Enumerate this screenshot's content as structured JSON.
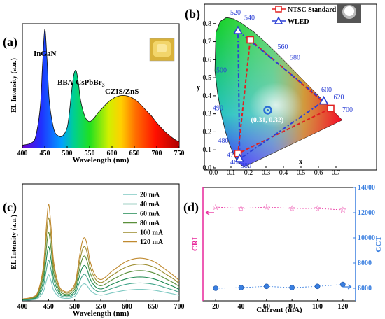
{
  "colors": {
    "nc_red": "#e02020",
    "nc_blue": "#2b3fd6",
    "cri_pink": "#e8279b",
    "cct_blue": "#3a7fe0"
  },
  "panel_labels": {
    "a": "(a)",
    "b": "(b)",
    "c": "(c)",
    "d": "(d)"
  },
  "chart_data": [
    {
      "type": "line",
      "panel": "a",
      "xlabel": "Wavelength (nm)",
      "ylabel": "EL Intensity (a.u.)",
      "xlim": [
        400,
        750
      ],
      "xticks": [
        "400",
        "450",
        "500",
        "550",
        "600",
        "650",
        "700",
        "750"
      ],
      "annotations": [
        "InGaN",
        "BBA-CsPbBr",
        "3",
        "CZIS/ZnS"
      ],
      "inset_icon": "yellow-led-photo",
      "x": [
        400,
        420,
        430,
        440,
        445,
        450,
        455,
        460,
        470,
        480,
        490,
        500,
        505,
        510,
        515,
        520,
        525,
        530,
        540,
        550,
        560,
        570,
        580,
        590,
        600,
        610,
        620,
        630,
        640,
        650,
        660,
        670,
        680,
        690,
        700,
        720,
        740,
        750
      ],
      "y": [
        0.02,
        0.04,
        0.1,
        0.35,
        0.7,
        1.0,
        0.75,
        0.4,
        0.16,
        0.1,
        0.1,
        0.17,
        0.3,
        0.48,
        0.62,
        0.65,
        0.55,
        0.4,
        0.26,
        0.22,
        0.25,
        0.3,
        0.34,
        0.38,
        0.41,
        0.43,
        0.44,
        0.44,
        0.43,
        0.41,
        0.38,
        0.34,
        0.3,
        0.26,
        0.21,
        0.13,
        0.07,
        0.05
      ]
    },
    {
      "type": "scatter",
      "panel": "b",
      "xlabel": "x",
      "ylabel": "y",
      "xlim": [
        0,
        0.8
      ],
      "ylim": [
        0,
        0.9
      ],
      "xticks": [
        "0.0",
        "0.1",
        "0.2",
        "0.3",
        "0.4",
        "0.5",
        "0.6",
        "0.7"
      ],
      "yticks": [
        "0.0",
        "0.1",
        "0.2",
        "0.3",
        "0.4",
        "0.5",
        "0.6",
        "0.7",
        "0.8"
      ],
      "locus_labels": [
        "520",
        "540",
        "560",
        "500",
        "580",
        "600",
        "620",
        "490",
        "700",
        "480",
        "470",
        "460",
        "380"
      ],
      "legend": [
        "NTSC Standard",
        "WLED"
      ],
      "ntsc": [
        [
          0.21,
          0.71
        ],
        [
          0.67,
          0.33
        ],
        [
          0.14,
          0.08
        ]
      ],
      "wled": [
        [
          0.14,
          0.76
        ],
        [
          0.63,
          0.37
        ],
        [
          0.15,
          0.05
        ]
      ],
      "white_point": {
        "label": "(0.31, 0.32)",
        "x": 0.31,
        "y": 0.32
      },
      "inset_icon": "white-led-photo"
    },
    {
      "type": "line",
      "panel": "c",
      "xlabel": "Wavelength (nm)",
      "ylabel": "EL Intensity (a.u.)",
      "xlim": [
        400,
        700
      ],
      "xticks": [
        "400",
        "450",
        "500",
        "550",
        "600",
        "650",
        "700"
      ],
      "series": [
        {
          "name": "20 mA",
          "color": "#7ec9c2",
          "scale": 0.27
        },
        {
          "name": "40 mA",
          "color": "#43a58b",
          "scale": 0.42
        },
        {
          "name": "60 mA",
          "color": "#1f8a52",
          "scale": 0.56
        },
        {
          "name": "80 mA",
          "color": "#5a8f3a",
          "scale": 0.71
        },
        {
          "name": "100 mA",
          "color": "#9a8a2a",
          "scale": 0.86
        },
        {
          "name": "120 mA",
          "color": "#c08a30",
          "scale": 1.0
        }
      ]
    },
    {
      "type": "scatter",
      "panel": "d",
      "xlabel": "Current (mA)",
      "ylabel_left": "CRI",
      "ylabel_right": "CCT",
      "x": [
        20,
        40,
        60,
        80,
        100,
        120
      ],
      "xticks": [
        "20",
        "40",
        "60",
        "80",
        "100",
        "120"
      ],
      "yticks_right": [
        "6000",
        "8000",
        "10000",
        "12000",
        "14000"
      ],
      "ylim_right": [
        5000,
        14000
      ],
      "cri": [
        86,
        85,
        86,
        85,
        85,
        84
      ],
      "cct": [
        6000,
        6050,
        6150,
        6050,
        6150,
        6300
      ]
    }
  ]
}
